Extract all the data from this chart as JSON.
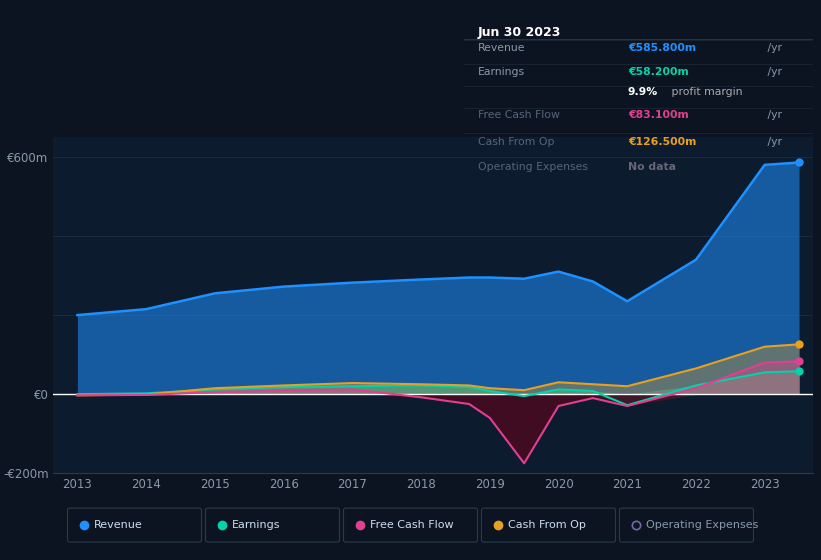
{
  "bg_color": "#0d1421",
  "plot_bg_color": "#0d1b2e",
  "grid_color": "#1e2d3d",
  "years": [
    2013,
    2014,
    2015,
    2016,
    2017,
    2018,
    2018.7,
    2019,
    2019.5,
    2020,
    2020.5,
    2021,
    2022,
    2023,
    2023.5
  ],
  "revenue": [
    200,
    215,
    255,
    272,
    282,
    290,
    295,
    295,
    292,
    310,
    285,
    235,
    340,
    580,
    586
  ],
  "earnings": [
    0,
    2,
    12,
    18,
    20,
    22,
    18,
    8,
    -5,
    12,
    8,
    -28,
    22,
    55,
    58
  ],
  "free_cash_flow": [
    -3,
    -2,
    5,
    10,
    12,
    -8,
    -25,
    -60,
    -175,
    -30,
    -10,
    -30,
    15,
    80,
    83
  ],
  "cash_from_op": [
    -3,
    -1,
    15,
    22,
    28,
    25,
    22,
    15,
    10,
    30,
    25,
    20,
    65,
    120,
    126
  ],
  "revenue_color": "#1e90ff",
  "earnings_color": "#00d4aa",
  "fcf_color": "#e0408f",
  "cashop_color": "#e8a020",
  "ylim": [
    -200,
    650
  ],
  "ylabel_600": "€600m",
  "ylabel_0": "€0",
  "ylabel_neg200": "-€200m",
  "xlabel_years": [
    "2013",
    "2014",
    "2015",
    "2016",
    "2017",
    "2018",
    "2019",
    "2020",
    "2021",
    "2022",
    "2023"
  ],
  "info_box_title": "Jun 30 2023",
  "info_rows": [
    {
      "label": "Revenue",
      "value": "€585.800m",
      "suffix": " /yr",
      "value_color": "#1e90ff",
      "dim": false
    },
    {
      "label": "Earnings",
      "value": "€58.200m",
      "suffix": " /yr",
      "value_color": "#00d4aa",
      "dim": false
    },
    {
      "label": "",
      "value": "9.9%",
      "suffix": " profit margin",
      "value_color": "#ffffff",
      "bold": true,
      "dim": false
    },
    {
      "label": "Free Cash Flow",
      "value": "€83.100m",
      "suffix": " /yr",
      "value_color": "#e0408f",
      "dim": true
    },
    {
      "label": "Cash From Op",
      "value": "€126.500m",
      "suffix": " /yr",
      "value_color": "#e8a020",
      "dim": true
    },
    {
      "label": "Operating Expenses",
      "value": "No data",
      "suffix": "",
      "value_color": "#666677",
      "dim": true
    }
  ],
  "legend_items": [
    {
      "label": "Revenue",
      "color": "#1e90ff",
      "filled": true
    },
    {
      "label": "Earnings",
      "color": "#00d4aa",
      "filled": true
    },
    {
      "label": "Free Cash Flow",
      "color": "#e0408f",
      "filled": true
    },
    {
      "label": "Cash From Op",
      "color": "#e8a020",
      "filled": true
    },
    {
      "label": "Operating Expenses",
      "color": "#7766aa",
      "filled": false
    }
  ]
}
